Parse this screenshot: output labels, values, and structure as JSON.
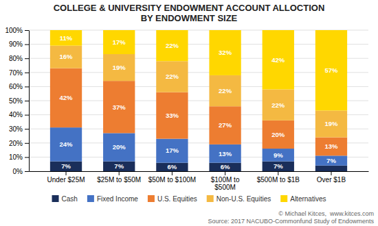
{
  "chart_data": {
    "type": "bar",
    "stacked": true,
    "title": "COLLEGE & UNIVERSITY ENDOWMENT ACCOUNT ALLOCTION\nBY ENDOWMENT SIZE",
    "categories": [
      "Under $25M",
      "$25M to $50M",
      "$50M to $100M",
      "$100M to\n$500M",
      "$500M to $1B",
      "Over $1B"
    ],
    "series": [
      {
        "name": "Cash",
        "color": "#1a2e5a",
        "values": [
          7,
          7,
          6,
          6,
          7,
          4
        ],
        "value_labels": [
          "7%",
          "7%",
          "6%",
          "6%",
          "7%",
          null
        ]
      },
      {
        "name": "Fixed Income",
        "color": "#4472c4",
        "values": [
          24,
          20,
          17,
          13,
          9,
          7
        ],
        "value_labels": [
          "24%",
          "20%",
          "17%",
          "13%",
          "9%",
          "7%"
        ]
      },
      {
        "name": "U.S. Equities",
        "color": "#ed7d31",
        "values": [
          42,
          37,
          33,
          27,
          20,
          13
        ],
        "value_labels": [
          "42%",
          "37%",
          "33%",
          "27%",
          "20%",
          "13%"
        ]
      },
      {
        "name": "Non-U.S. Equities",
        "color": "#f4b942",
        "values": [
          16,
          19,
          22,
          22,
          22,
          19
        ],
        "value_labels": [
          "16%",
          "19%",
          "22%",
          "22%",
          "22%",
          "19%"
        ]
      },
      {
        "name": "Alternatives",
        "color": "#ffd700",
        "values": [
          11,
          17,
          22,
          32,
          42,
          57
        ],
        "value_labels": [
          "11%",
          "17%",
          "22%",
          "32%",
          "42%",
          "57%"
        ]
      }
    ],
    "ylim": [
      0,
      100
    ],
    "yticks": [
      {
        "value": 0,
        "label": "0%"
      },
      {
        "value": 10,
        "label": "10%"
      },
      {
        "value": 20,
        "label": "20%"
      },
      {
        "value": 30,
        "label": "30%"
      },
      {
        "value": 40,
        "label": "40%"
      },
      {
        "value": 50,
        "label": "50%"
      },
      {
        "value": 60,
        "label": "60%"
      },
      {
        "value": 70,
        "label": "70%"
      },
      {
        "value": 80,
        "label": "80%"
      },
      {
        "value": 90,
        "label": "90%"
      },
      {
        "value": 100,
        "label": "100%"
      }
    ],
    "grid": true,
    "data_labels": true,
    "legend": "bottom",
    "annotations": [
      "© Michael Kitces,  www.kitces.com\nSource: 2017 NACUBO-Commonfund Study of Endowments"
    ]
  }
}
